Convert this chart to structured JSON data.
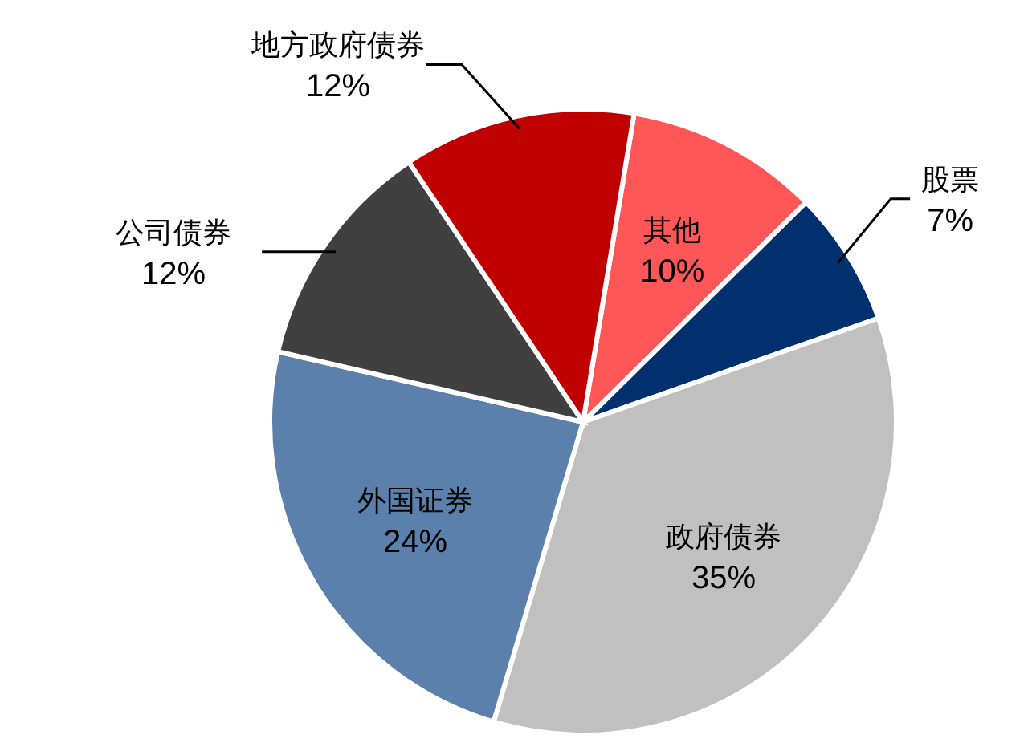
{
  "chart_data": {
    "type": "pie",
    "categories": [
      "其他",
      "股票",
      "政府债券",
      "外国证券",
      "公司债券",
      "地方政府债券"
    ],
    "values": [
      10,
      7,
      35,
      24,
      12,
      12
    ],
    "colors": [
      "#ff5757",
      "#00306e",
      "#c0c0c0",
      "#5b80ab",
      "#404040",
      "#c00000"
    ],
    "value_labels": [
      "10%",
      "7%",
      "35%",
      "24%",
      "12%",
      "12%"
    ],
    "legend": false
  }
}
